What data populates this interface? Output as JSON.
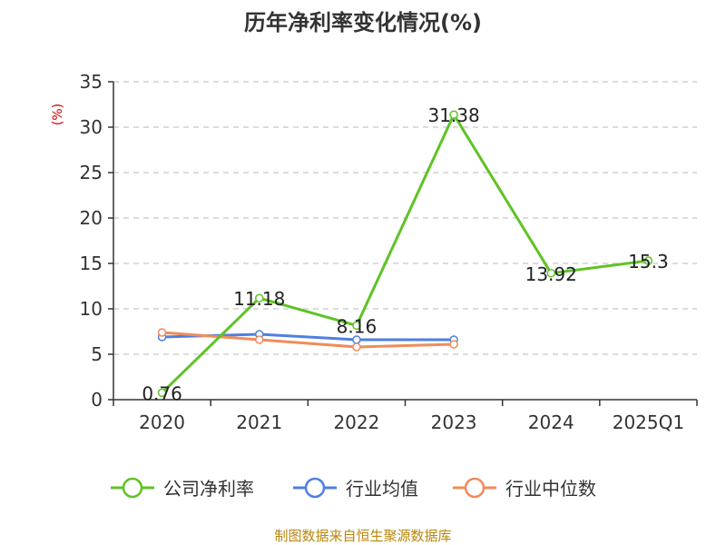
{
  "chart_data": {
    "type": "line",
    "title": "历年净利率变化情况(%)",
    "ylabel": "(%)",
    "xlabel": "",
    "categories": [
      "2020",
      "2021",
      "2022",
      "2023",
      "2024",
      "2025Q1"
    ],
    "ylim": [
      0,
      35
    ],
    "yticks": [
      0,
      5,
      10,
      15,
      20,
      25,
      30,
      35
    ],
    "grid": true,
    "legend_position": "bottom",
    "series": [
      {
        "name": "公司净利率",
        "color": "#5fc226",
        "values": [
          0.76,
          11.18,
          8.16,
          31.38,
          13.92,
          15.3
        ],
        "labels": [
          "0.76",
          "11.18",
          "8.16",
          "31.38",
          "13.92",
          "15.3"
        ]
      },
      {
        "name": "行业均值",
        "color": "#4f7fe0",
        "values": [
          6.9,
          7.2,
          6.6,
          6.6,
          null,
          null
        ]
      },
      {
        "name": "行业中位数",
        "color": "#f08c5a",
        "values": [
          7.4,
          6.6,
          5.8,
          6.1,
          null,
          null
        ]
      }
    ]
  },
  "source_text": "制图数据来自恒生聚源数据库"
}
